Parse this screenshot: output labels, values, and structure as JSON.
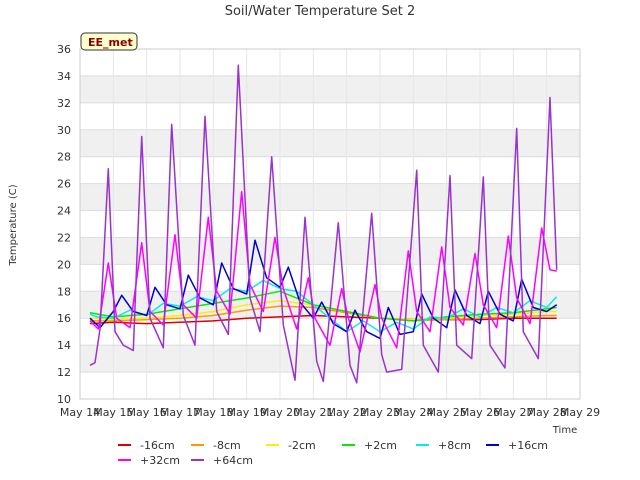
{
  "site_label": "EE_met",
  "chart_data": {
    "type": "line",
    "title": "Soil/Water Temperature Set 2",
    "xlabel": "Time",
    "ylabel": "Temperature (C)",
    "xlim": [
      14,
      29
    ],
    "ylim": [
      10,
      36
    ],
    "x_ticks": [
      "May 14",
      "May 15",
      "May 16",
      "May 17",
      "May 18",
      "May 19",
      "May 20",
      "May 21",
      "May 22",
      "May 23",
      "May 24",
      "May 25",
      "May 26",
      "May 27",
      "May 28",
      "May 29"
    ],
    "y_ticks": [
      10,
      12,
      14,
      16,
      18,
      20,
      22,
      24,
      26,
      28,
      30,
      32,
      34,
      36
    ],
    "grid": true,
    "legend_placement": "bottom",
    "series": [
      {
        "name": "-16cm",
        "color": "#dd0000",
        "x": [
          14.3,
          15,
          16,
          17,
          18,
          19,
          20,
          21,
          22,
          23,
          24,
          25,
          26,
          27,
          28,
          28.3
        ],
        "y": [
          15.6,
          15.7,
          15.6,
          15.7,
          15.8,
          16.0,
          16.1,
          16.2,
          16.1,
          16.0,
          15.9,
          15.9,
          15.9,
          16.0,
          16.0,
          16.0
        ]
      },
      {
        "name": "-8cm",
        "color": "#ff9900",
        "x": [
          14.3,
          15,
          16,
          17,
          18,
          19,
          20,
          21,
          22,
          23,
          24,
          25,
          26,
          27,
          28,
          28.3
        ],
        "y": [
          15.8,
          15.8,
          15.9,
          16.0,
          16.2,
          16.6,
          16.9,
          16.8,
          16.4,
          16.0,
          15.8,
          15.9,
          16.0,
          16.1,
          16.2,
          16.2
        ]
      },
      {
        "name": "-2cm",
        "color": "#ffee00",
        "x": [
          14.3,
          15,
          16,
          17,
          18,
          19,
          20,
          21,
          22,
          23,
          24,
          25,
          26,
          27,
          28,
          28.3
        ],
        "y": [
          16.0,
          15.9,
          16.0,
          16.2,
          16.5,
          17.0,
          17.3,
          17.0,
          16.5,
          16.0,
          15.9,
          16.0,
          16.2,
          16.3,
          16.5,
          16.5
        ]
      },
      {
        "name": "+2cm",
        "color": "#00ee00",
        "x": [
          14.3,
          15,
          16,
          17,
          18,
          19,
          20,
          21,
          22,
          23,
          24,
          25,
          26,
          27,
          28,
          28.3
        ],
        "y": [
          16.4,
          16.1,
          16.3,
          16.7,
          17.1,
          17.5,
          18.0,
          17.0,
          16.5,
          16.0,
          15.8,
          16.1,
          16.3,
          16.4,
          16.7,
          16.8
        ]
      },
      {
        "name": "+8cm",
        "color": "#00eeee",
        "x": [
          14.3,
          14.5,
          15,
          15.5,
          16,
          16.5,
          17,
          17.5,
          18,
          18.5,
          19,
          19.5,
          20,
          20.5,
          21,
          21.5,
          22,
          22.5,
          23,
          23.5,
          24,
          24.5,
          25,
          25.5,
          26,
          26.5,
          27,
          27.5,
          28,
          28.3
        ],
        "y": [
          16.3,
          16.1,
          16.0,
          16.6,
          16.2,
          17.1,
          16.9,
          17.6,
          17.3,
          18.2,
          18.0,
          18.8,
          18.2,
          18.0,
          17.0,
          16.0,
          15.0,
          15.8,
          15.0,
          15.7,
          15.2,
          16.1,
          16.0,
          16.7,
          16.1,
          16.8,
          16.4,
          17.3,
          16.8,
          17.6
        ]
      },
      {
        "name": "+16cm",
        "color": "#0000cc",
        "x": [
          14.3,
          14.6,
          15,
          15.25,
          15.6,
          16,
          16.25,
          16.6,
          17,
          17.25,
          17.6,
          18,
          18.25,
          18.6,
          19,
          19.25,
          19.6,
          20,
          20.25,
          20.6,
          21,
          21.25,
          21.6,
          22,
          22.25,
          22.6,
          23,
          23.25,
          23.6,
          24,
          24.25,
          24.6,
          25,
          25.25,
          25.6,
          26,
          26.25,
          26.6,
          27,
          27.25,
          27.6,
          28,
          28.3
        ],
        "y": [
          16.0,
          15.3,
          16.5,
          17.7,
          16.5,
          16.2,
          18.3,
          17.0,
          16.7,
          19.2,
          17.5,
          17.0,
          20.1,
          18.2,
          17.8,
          21.8,
          19.0,
          18.3,
          19.8,
          17.2,
          16.0,
          17.2,
          15.6,
          15.0,
          16.6,
          15.0,
          14.5,
          16.8,
          14.8,
          15.0,
          17.8,
          16.0,
          15.3,
          18.1,
          16.2,
          15.6,
          18.0,
          16.3,
          15.8,
          18.9,
          16.8,
          16.5,
          17.0
        ]
      },
      {
        "name": "+32cm",
        "color": "#ff00ff",
        "x": [
          14.3,
          14.55,
          14.85,
          15.1,
          15.5,
          15.85,
          16.1,
          16.5,
          16.85,
          17.1,
          17.5,
          17.85,
          18.1,
          18.5,
          18.85,
          19.1,
          19.5,
          19.85,
          20.1,
          20.5,
          20.85,
          21.05,
          21.5,
          21.85,
          22.05,
          22.4,
          22.85,
          23.05,
          23.5,
          23.85,
          24.1,
          24.5,
          24.85,
          25.1,
          25.5,
          25.85,
          26.1,
          26.5,
          26.85,
          27.1,
          27.5,
          27.85,
          28.1,
          28.3
        ],
        "y": [
          15.8,
          15.2,
          20.1,
          16.0,
          15.3,
          21.6,
          16.5,
          15.5,
          22.2,
          17.0,
          16.0,
          23.5,
          18.0,
          16.3,
          25.4,
          18.5,
          16.5,
          22.0,
          18.2,
          15.2,
          19.0,
          16.0,
          14.0,
          18.2,
          16.0,
          13.5,
          18.5,
          16.0,
          13.8,
          21.0,
          16.5,
          15.0,
          21.3,
          16.8,
          15.5,
          20.8,
          17.0,
          15.3,
          22.1,
          17.5,
          15.6,
          22.7,
          19.6,
          19.5
        ]
      },
      {
        "name": "+64cm",
        "color": "#9933cc",
        "x": [
          14.3,
          14.45,
          14.6,
          14.85,
          15.05,
          15.3,
          15.6,
          15.85,
          16.1,
          16.5,
          16.75,
          17.1,
          17.45,
          17.75,
          18.1,
          18.45,
          18.75,
          19.1,
          19.4,
          19.75,
          20.1,
          20.45,
          20.75,
          21.1,
          21.3,
          21.75,
          22.1,
          22.3,
          22.75,
          23.05,
          23.2,
          23.65,
          24.1,
          24.3,
          24.75,
          25.1,
          25.3,
          25.75,
          26.1,
          26.3,
          26.75,
          27.1,
          27.3,
          27.75,
          28.1,
          28.3
        ],
        "y": [
          12.5,
          12.7,
          15.2,
          27.1,
          15.0,
          14.0,
          13.6,
          29.5,
          16.0,
          13.8,
          30.4,
          16.2,
          14.0,
          31.0,
          16.5,
          14.8,
          34.8,
          17.5,
          15.0,
          28.0,
          15.5,
          11.4,
          23.5,
          12.8,
          11.3,
          23.1,
          12.5,
          11.2,
          23.8,
          13.3,
          12.0,
          12.2,
          27.0,
          14.0,
          12.0,
          26.6,
          14.0,
          13.0,
          26.5,
          14.0,
          12.3,
          30.1,
          15.0,
          13.0,
          32.4,
          19.6
        ]
      }
    ]
  }
}
